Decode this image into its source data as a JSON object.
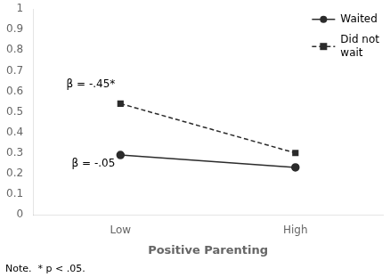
{
  "chart_data": {
    "type": "line",
    "categories": [
      "Low",
      "High"
    ],
    "series": [
      {
        "name": "Waited",
        "color": "#2b2b2b",
        "values": [
          0.29,
          0.23
        ],
        "marker": "circle",
        "line_style": "solid"
      },
      {
        "name": "Did not\nwait",
        "color": "#2b2b2b",
        "values": [
          0.54,
          0.3
        ],
        "marker": "square",
        "line_style": "dashed"
      }
    ],
    "xlabel": "Positive Parenting",
    "ylim": [
      0,
      1.0
    ],
    "yticks": [
      0,
      0.1,
      0.2,
      0.3,
      0.4,
      0.5,
      0.6,
      0.7,
      0.8,
      0.9,
      1
    ],
    "annotations": [
      {
        "text": "β = -.45*",
        "y": 0.62
      },
      {
        "text": "β = -.05",
        "y": 0.235
      }
    ],
    "note": "Note.  * p < .05.",
    "legend": "upper right",
    "grid": false
  }
}
